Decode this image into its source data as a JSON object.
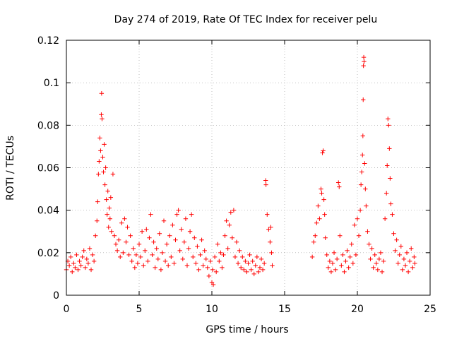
{
  "chart_data": {
    "type": "scatter",
    "title": "Day 274 of 2019, Rate Of TEC Index for receiver pelu",
    "xlabel": "GPS time / hours",
    "ylabel": "ROTI / TECUs",
    "xlim": [
      0,
      25
    ],
    "ylim": [
      0,
      0.12
    ],
    "xticks": [
      0,
      5,
      10,
      15,
      20,
      25
    ],
    "yticks": [
      0,
      0.02,
      0.04,
      0.06,
      0.08,
      0.1,
      0.12
    ],
    "xtick_labels": [
      "0",
      "5",
      "10",
      "15",
      "20",
      "25"
    ],
    "ytick_labels": [
      "0",
      "0.02",
      "0.04",
      "0.06",
      "0.08",
      "0.1",
      "0.12"
    ],
    "grid": true,
    "marker": "+",
    "color": "#ff0000",
    "series": [
      {
        "name": "ROTI",
        "points": [
          [
            0.0,
            0.012
          ],
          [
            0.1,
            0.016
          ],
          [
            0.2,
            0.014
          ],
          [
            0.3,
            0.018
          ],
          [
            0.4,
            0.011
          ],
          [
            0.5,
            0.015
          ],
          [
            0.6,
            0.013
          ],
          [
            0.7,
            0.019
          ],
          [
            0.8,
            0.012
          ],
          [
            0.9,
            0.016
          ],
          [
            1.0,
            0.014
          ],
          [
            1.1,
            0.018
          ],
          [
            1.2,
            0.021
          ],
          [
            1.3,
            0.013
          ],
          [
            1.4,
            0.017
          ],
          [
            1.5,
            0.015
          ],
          [
            1.6,
            0.022
          ],
          [
            1.7,
            0.012
          ],
          [
            1.8,
            0.019
          ],
          [
            1.9,
            0.016
          ],
          [
            2.0,
            0.028
          ],
          [
            2.1,
            0.035
          ],
          [
            2.15,
            0.044
          ],
          [
            2.2,
            0.057
          ],
          [
            2.25,
            0.063
          ],
          [
            2.3,
            0.074
          ],
          [
            2.35,
            0.068
          ],
          [
            2.4,
            0.085
          ],
          [
            2.42,
            0.095
          ],
          [
            2.45,
            0.083
          ],
          [
            2.5,
            0.065
          ],
          [
            2.55,
            0.058
          ],
          [
            2.6,
            0.071
          ],
          [
            2.65,
            0.052
          ],
          [
            2.7,
            0.06
          ],
          [
            2.75,
            0.045
          ],
          [
            2.8,
            0.038
          ],
          [
            2.85,
            0.049
          ],
          [
            2.9,
            0.032
          ],
          [
            2.95,
            0.041
          ],
          [
            3.0,
            0.036
          ],
          [
            3.05,
            0.046
          ],
          [
            3.1,
            0.03
          ],
          [
            3.2,
            0.057
          ],
          [
            3.3,
            0.028
          ],
          [
            3.4,
            0.024
          ],
          [
            3.5,
            0.021
          ],
          [
            3.6,
            0.026
          ],
          [
            3.7,
            0.018
          ],
          [
            3.8,
            0.034
          ],
          [
            3.9,
            0.02
          ],
          [
            4.0,
            0.036
          ],
          [
            4.1,
            0.025
          ],
          [
            4.2,
            0.032
          ],
          [
            4.3,
            0.019
          ],
          [
            4.4,
            0.028
          ],
          [
            4.5,
            0.016
          ],
          [
            4.6,
            0.022
          ],
          [
            4.7,
            0.013
          ],
          [
            4.8,
            0.019
          ],
          [
            4.9,
            0.015
          ],
          [
            5.0,
            0.024
          ],
          [
            5.1,
            0.018
          ],
          [
            5.2,
            0.03
          ],
          [
            5.3,
            0.014
          ],
          [
            5.4,
            0.021
          ],
          [
            5.5,
            0.031
          ],
          [
            5.6,
            0.016
          ],
          [
            5.7,
            0.027
          ],
          [
            5.8,
            0.038
          ],
          [
            5.9,
            0.019
          ],
          [
            6.0,
            0.025
          ],
          [
            6.1,
            0.013
          ],
          [
            6.2,
            0.022
          ],
          [
            6.3,
            0.017
          ],
          [
            6.4,
            0.029
          ],
          [
            6.5,
            0.012
          ],
          [
            6.6,
            0.02
          ],
          [
            6.7,
            0.035
          ],
          [
            6.8,
            0.016
          ],
          [
            6.9,
            0.024
          ],
          [
            7.0,
            0.014
          ],
          [
            7.1,
            0.028
          ],
          [
            7.2,
            0.018
          ],
          [
            7.3,
            0.033
          ],
          [
            7.4,
            0.015
          ],
          [
            7.5,
            0.026
          ],
          [
            7.6,
            0.038
          ],
          [
            7.7,
            0.04
          ],
          [
            7.8,
            0.021
          ],
          [
            7.9,
            0.031
          ],
          [
            8.0,
            0.017
          ],
          [
            8.1,
            0.025
          ],
          [
            8.2,
            0.036
          ],
          [
            8.3,
            0.014
          ],
          [
            8.4,
            0.022
          ],
          [
            8.5,
            0.03
          ],
          [
            8.6,
            0.038
          ],
          [
            8.7,
            0.018
          ],
          [
            8.8,
            0.027
          ],
          [
            8.9,
            0.015
          ],
          [
            9.0,
            0.023
          ],
          [
            9.1,
            0.012
          ],
          [
            9.2,
            0.019
          ],
          [
            9.3,
            0.026
          ],
          [
            9.4,
            0.014
          ],
          [
            9.5,
            0.021
          ],
          [
            9.6,
            0.017
          ],
          [
            9.7,
            0.013
          ],
          [
            9.8,
            0.009
          ],
          [
            9.9,
            0.016
          ],
          [
            10.0,
            0.006
          ],
          [
            10.05,
            0.012
          ],
          [
            10.1,
            0.005
          ],
          [
            10.2,
            0.018
          ],
          [
            10.3,
            0.011
          ],
          [
            10.4,
            0.024
          ],
          [
            10.5,
            0.016
          ],
          [
            10.6,
            0.02
          ],
          [
            10.7,
            0.013
          ],
          [
            10.8,
            0.019
          ],
          [
            10.9,
            0.028
          ],
          [
            11.0,
            0.035
          ],
          [
            11.1,
            0.022
          ],
          [
            11.2,
            0.033
          ],
          [
            11.3,
            0.039
          ],
          [
            11.4,
            0.027
          ],
          [
            11.5,
            0.04
          ],
          [
            11.6,
            0.018
          ],
          [
            11.7,
            0.025
          ],
          [
            11.8,
            0.015
          ],
          [
            11.9,
            0.021
          ],
          [
            12.0,
            0.013
          ],
          [
            12.1,
            0.018
          ],
          [
            12.2,
            0.012
          ],
          [
            12.3,
            0.016
          ],
          [
            12.4,
            0.011
          ],
          [
            12.5,
            0.015
          ],
          [
            12.6,
            0.019
          ],
          [
            12.7,
            0.012
          ],
          [
            12.8,
            0.016
          ],
          [
            12.9,
            0.01
          ],
          [
            13.0,
            0.014
          ],
          [
            13.1,
            0.018
          ],
          [
            13.2,
            0.011
          ],
          [
            13.3,
            0.013
          ],
          [
            13.4,
            0.017
          ],
          [
            13.5,
            0.012
          ],
          [
            13.6,
            0.015
          ],
          [
            13.7,
            0.054
          ],
          [
            13.72,
            0.052
          ],
          [
            13.8,
            0.038
          ],
          [
            13.9,
            0.031
          ],
          [
            14.0,
            0.025
          ],
          [
            14.05,
            0.032
          ],
          [
            14.1,
            0.02
          ],
          [
            14.15,
            0.014
          ],
          [
            16.9,
            0.018
          ],
          [
            17.0,
            0.025
          ],
          [
            17.1,
            0.028
          ],
          [
            17.2,
            0.034
          ],
          [
            17.3,
            0.042
          ],
          [
            17.4,
            0.036
          ],
          [
            17.5,
            0.05
          ],
          [
            17.55,
            0.048
          ],
          [
            17.6,
            0.067
          ],
          [
            17.65,
            0.068
          ],
          [
            17.7,
            0.045
          ],
          [
            17.75,
            0.038
          ],
          [
            17.8,
            0.027
          ],
          [
            17.9,
            0.019
          ],
          [
            18.0,
            0.013
          ],
          [
            18.1,
            0.016
          ],
          [
            18.2,
            0.011
          ],
          [
            18.3,
            0.015
          ],
          [
            18.4,
            0.02
          ],
          [
            18.5,
            0.012
          ],
          [
            18.6,
            0.017
          ],
          [
            18.7,
            0.053
          ],
          [
            18.75,
            0.051
          ],
          [
            18.8,
            0.028
          ],
          [
            18.9,
            0.014
          ],
          [
            19.0,
            0.019
          ],
          [
            19.1,
            0.011
          ],
          [
            19.2,
            0.016
          ],
          [
            19.3,
            0.021
          ],
          [
            19.4,
            0.013
          ],
          [
            19.5,
            0.018
          ],
          [
            19.6,
            0.024
          ],
          [
            19.7,
            0.015
          ],
          [
            19.8,
            0.033
          ],
          [
            19.9,
            0.019
          ],
          [
            20.0,
            0.036
          ],
          [
            20.1,
            0.028
          ],
          [
            20.2,
            0.04
          ],
          [
            20.25,
            0.052
          ],
          [
            20.3,
            0.058
          ],
          [
            20.35,
            0.066
          ],
          [
            20.38,
            0.075
          ],
          [
            20.4,
            0.092
          ],
          [
            20.42,
            0.108
          ],
          [
            20.44,
            0.112
          ],
          [
            20.46,
            0.11
          ],
          [
            20.5,
            0.062
          ],
          [
            20.55,
            0.05
          ],
          [
            20.6,
            0.042
          ],
          [
            20.7,
            0.03
          ],
          [
            20.8,
            0.024
          ],
          [
            20.9,
            0.017
          ],
          [
            21.0,
            0.022
          ],
          [
            21.1,
            0.013
          ],
          [
            21.2,
            0.019
          ],
          [
            21.3,
            0.015
          ],
          [
            21.4,
            0.012
          ],
          [
            21.5,
            0.017
          ],
          [
            21.6,
            0.02
          ],
          [
            21.7,
            0.011
          ],
          [
            21.8,
            0.016
          ],
          [
            21.9,
            0.036
          ],
          [
            22.0,
            0.048
          ],
          [
            22.05,
            0.061
          ],
          [
            22.1,
            0.083
          ],
          [
            22.15,
            0.08
          ],
          [
            22.2,
            0.069
          ],
          [
            22.25,
            0.055
          ],
          [
            22.3,
            0.043
          ],
          [
            22.4,
            0.038
          ],
          [
            22.5,
            0.029
          ],
          [
            22.6,
            0.021
          ],
          [
            22.7,
            0.026
          ],
          [
            22.8,
            0.015
          ],
          [
            22.9,
            0.019
          ],
          [
            23.0,
            0.023
          ],
          [
            23.1,
            0.012
          ],
          [
            23.2,
            0.017
          ],
          [
            23.3,
            0.014
          ],
          [
            23.4,
            0.02
          ],
          [
            23.5,
            0.011
          ],
          [
            23.6,
            0.016
          ],
          [
            23.7,
            0.022
          ],
          [
            23.8,
            0.013
          ],
          [
            23.9,
            0.018
          ],
          [
            23.95,
            0.015
          ]
        ]
      }
    ]
  }
}
